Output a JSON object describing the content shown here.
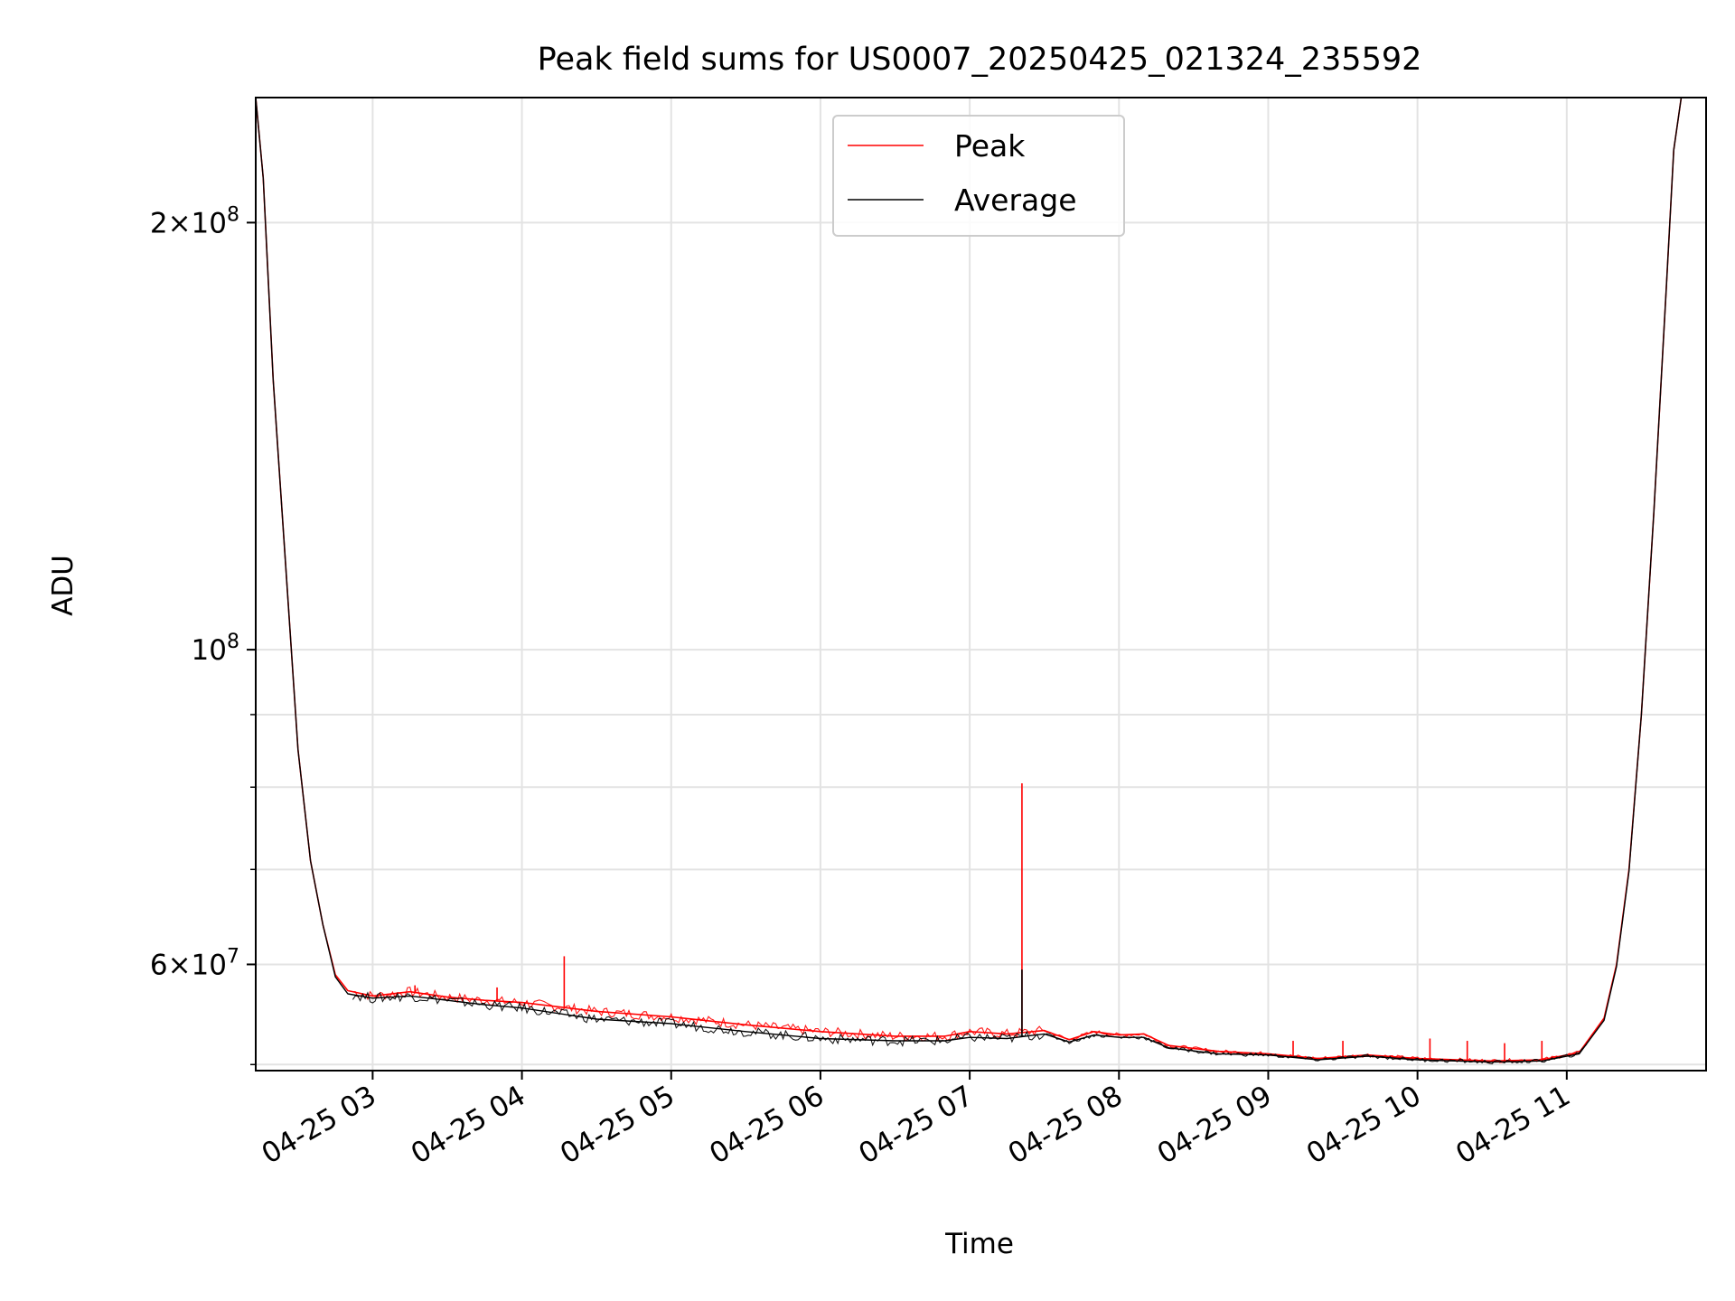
{
  "chart_data": {
    "type": "line",
    "title": "Peak field sums for US0007_20250425_021324_235592",
    "xlabel": "Time",
    "ylabel": "ADU",
    "yscale": "log",
    "ylim": [
      50500000,
      245000000
    ],
    "xlim": [
      "2025-04-25 02:13",
      "2025-04-25 11:56"
    ],
    "grid": true,
    "legend": "upper center",
    "x_ticks": [
      {
        "t": "2025-04-25 03:00",
        "label": "04-25 03"
      },
      {
        "t": "2025-04-25 04:00",
        "label": "04-25 04"
      },
      {
        "t": "2025-04-25 05:00",
        "label": "04-25 05"
      },
      {
        "t": "2025-04-25 06:00",
        "label": "04-25 06"
      },
      {
        "t": "2025-04-25 07:00",
        "label": "04-25 07"
      },
      {
        "t": "2025-04-25 08:00",
        "label": "04-25 08"
      },
      {
        "t": "2025-04-25 09:00",
        "label": "04-25 09"
      },
      {
        "t": "2025-04-25 10:00",
        "label": "04-25 10"
      },
      {
        "t": "2025-04-25 11:00",
        "label": "04-25 11"
      }
    ],
    "y_major_ticks": [
      {
        "value": 200000000,
        "base": "2×10",
        "exp": "8"
      },
      {
        "value": 100000000,
        "base": "10",
        "exp": "8"
      },
      {
        "value": 60000000,
        "base": "6×10",
        "exp": "7"
      }
    ],
    "y_minor_ticks": [
      51000000,
      70000000,
      80000000,
      90000000
    ],
    "series": [
      {
        "name": "Peak",
        "color": "#ff0000",
        "points": [
          [
            "2025-04-25 02:13",
            245000000
          ],
          [
            "2025-04-25 02:16",
            215000000
          ],
          [
            "2025-04-25 02:20",
            155000000
          ],
          [
            "2025-04-25 02:25",
            115000000
          ],
          [
            "2025-04-25 02:30",
            85000000
          ],
          [
            "2025-04-25 02:35",
            71000000
          ],
          [
            "2025-04-25 02:40",
            64000000
          ],
          [
            "2025-04-25 02:45",
            59000000
          ],
          [
            "2025-04-25 02:50",
            57500000
          ],
          [
            "2025-04-25 03:00",
            57000000
          ],
          [
            "2025-04-25 03:15",
            57400000
          ],
          [
            "2025-04-25 03:30",
            56900000
          ],
          [
            "2025-04-25 03:45",
            56600000
          ],
          [
            "2025-04-25 04:00",
            56400000
          ],
          [
            "2025-04-25 04:30",
            55600000
          ],
          [
            "2025-04-25 05:00",
            55100000
          ],
          [
            "2025-04-25 05:30",
            54400000
          ],
          [
            "2025-04-25 06:00",
            53800000
          ],
          [
            "2025-04-25 06:30",
            53400000
          ],
          [
            "2025-04-25 06:50",
            53400000
          ],
          [
            "2025-04-25 07:00",
            53800000
          ],
          [
            "2025-04-25 07:15",
            53600000
          ],
          [
            "2025-04-25 07:30",
            53900000
          ],
          [
            "2025-04-25 07:40",
            53100000
          ],
          [
            "2025-04-25 07:50",
            53800000
          ],
          [
            "2025-04-25 08:00",
            53500000
          ],
          [
            "2025-04-25 08:10",
            53600000
          ],
          [
            "2025-04-25 08:20",
            52600000
          ],
          [
            "2025-04-25 08:40",
            52100000
          ],
          [
            "2025-04-25 09:00",
            51900000
          ],
          [
            "2025-04-25 09:20",
            51500000
          ],
          [
            "2025-04-25 09:40",
            51800000
          ],
          [
            "2025-04-25 10:00",
            51500000
          ],
          [
            "2025-04-25 10:30",
            51300000
          ],
          [
            "2025-04-25 10:50",
            51400000
          ],
          [
            "2025-04-25 11:05",
            52000000
          ],
          [
            "2025-04-25 11:15",
            55000000
          ],
          [
            "2025-04-25 11:20",
            60000000
          ],
          [
            "2025-04-25 11:25",
            70000000
          ],
          [
            "2025-04-25 11:30",
            90000000
          ],
          [
            "2025-04-25 11:35",
            125000000
          ],
          [
            "2025-04-25 11:40",
            180000000
          ],
          [
            "2025-04-25 11:43",
            225000000
          ],
          [
            "2025-04-25 11:46",
            245000000
          ],
          [
            "2025-04-25 11:56",
            245000000
          ]
        ],
        "spikes": [
          [
            "2025-04-25 04:17",
            60800000
          ],
          [
            "2025-04-25 07:21",
            80500000
          ],
          [
            "2025-04-25 03:17",
            58000000
          ],
          [
            "2025-04-25 03:50",
            57800000
          ],
          [
            "2025-04-25 09:10",
            53000000
          ],
          [
            "2025-04-25 09:30",
            53000000
          ],
          [
            "2025-04-25 10:05",
            53200000
          ],
          [
            "2025-04-25 10:20",
            53000000
          ],
          [
            "2025-04-25 10:35",
            52800000
          ],
          [
            "2025-04-25 10:50",
            53000000
          ]
        ]
      },
      {
        "name": "Average",
        "color": "#000000",
        "points": [
          [
            "2025-04-25 02:13",
            245000000
          ],
          [
            "2025-04-25 02:16",
            215000000
          ],
          [
            "2025-04-25 02:20",
            155000000
          ],
          [
            "2025-04-25 02:25",
            115000000
          ],
          [
            "2025-04-25 02:30",
            85000000
          ],
          [
            "2025-04-25 02:35",
            71000000
          ],
          [
            "2025-04-25 02:40",
            64000000
          ],
          [
            "2025-04-25 02:45",
            58800000
          ],
          [
            "2025-04-25 02:50",
            57200000
          ],
          [
            "2025-04-25 03:00",
            56800000
          ],
          [
            "2025-04-25 03:15",
            57000000
          ],
          [
            "2025-04-25 03:30",
            56600000
          ],
          [
            "2025-04-25 03:45",
            56200000
          ],
          [
            "2025-04-25 04:00",
            55900000
          ],
          [
            "2025-04-25 04:30",
            54900000
          ],
          [
            "2025-04-25 05:00",
            54500000
          ],
          [
            "2025-04-25 05:30",
            53800000
          ],
          [
            "2025-04-25 06:00",
            53200000
          ],
          [
            "2025-04-25 06:30",
            53000000
          ],
          [
            "2025-04-25 06:50",
            53000000
          ],
          [
            "2025-04-25 07:00",
            53300000
          ],
          [
            "2025-04-25 07:15",
            53200000
          ],
          [
            "2025-04-25 07:30",
            53600000
          ],
          [
            "2025-04-25 07:40",
            52900000
          ],
          [
            "2025-04-25 07:50",
            53500000
          ],
          [
            "2025-04-25 08:00",
            53300000
          ],
          [
            "2025-04-25 08:10",
            53300000
          ],
          [
            "2025-04-25 08:20",
            52400000
          ],
          [
            "2025-04-25 08:40",
            51900000
          ],
          [
            "2025-04-25 09:00",
            51800000
          ],
          [
            "2025-04-25 09:20",
            51400000
          ],
          [
            "2025-04-25 09:40",
            51700000
          ],
          [
            "2025-04-25 10:00",
            51400000
          ],
          [
            "2025-04-25 10:30",
            51200000
          ],
          [
            "2025-04-25 10:50",
            51300000
          ],
          [
            "2025-04-25 11:05",
            51900000
          ],
          [
            "2025-04-25 11:15",
            54800000
          ],
          [
            "2025-04-25 11:20",
            59800000
          ],
          [
            "2025-04-25 11:25",
            69800000
          ],
          [
            "2025-04-25 11:30",
            90000000
          ],
          [
            "2025-04-25 11:35",
            125000000
          ],
          [
            "2025-04-25 11:40",
            180000000
          ],
          [
            "2025-04-25 11:43",
            225000000
          ],
          [
            "2025-04-25 11:46",
            245000000
          ],
          [
            "2025-04-25 11:56",
            245000000
          ]
        ],
        "spikes": [
          [
            "2025-04-25 07:21",
            59500000
          ]
        ]
      }
    ]
  }
}
